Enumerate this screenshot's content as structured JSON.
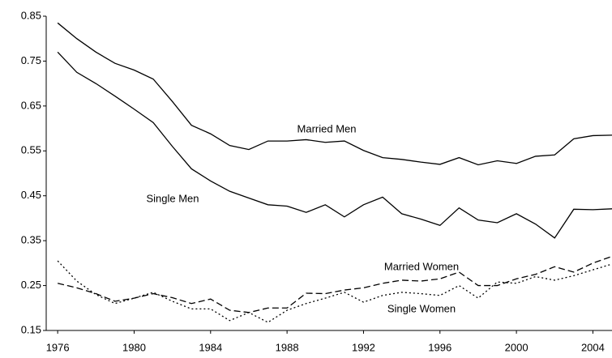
{
  "chart_data": {
    "type": "line",
    "x": [
      1976,
      1977,
      1978,
      1979,
      1980,
      1981,
      1982,
      1983,
      1984,
      1985,
      1986,
      1987,
      1988,
      1989,
      1990,
      1991,
      1992,
      1993,
      1994,
      1995,
      1996,
      1997,
      1998,
      1999,
      2000,
      2001,
      2002,
      2003,
      2004,
      2005
    ],
    "series": [
      {
        "name": "Married Men",
        "color": "#000000",
        "dash": "solid",
        "values": [
          0.835,
          0.8,
          0.77,
          0.745,
          0.73,
          0.71,
          0.66,
          0.607,
          0.588,
          0.562,
          0.553,
          0.572,
          0.572,
          0.575,
          0.569,
          0.572,
          0.551,
          0.535,
          0.531,
          0.525,
          0.52,
          0.535,
          0.519,
          0.528,
          0.522,
          0.538,
          0.541,
          0.577,
          0.584,
          0.585
        ]
      },
      {
        "name": "Single Men",
        "color": "#000000",
        "dash": "solid",
        "values": [
          0.77,
          0.725,
          0.7,
          0.672,
          0.643,
          0.613,
          0.56,
          0.51,
          0.483,
          0.46,
          0.445,
          0.43,
          0.427,
          0.413,
          0.43,
          0.403,
          0.43,
          0.447,
          0.41,
          0.398,
          0.384,
          0.423,
          0.396,
          0.39,
          0.41,
          0.387,
          0.356,
          0.42,
          0.419,
          0.421
        ]
      },
      {
        "name": "Married Women",
        "color": "#000000",
        "dash": "dashed",
        "values": [
          0.255,
          0.245,
          0.232,
          0.215,
          0.222,
          0.232,
          0.223,
          0.21,
          0.22,
          0.195,
          0.19,
          0.2,
          0.2,
          0.233,
          0.232,
          0.24,
          0.245,
          0.255,
          0.262,
          0.26,
          0.265,
          0.28,
          0.25,
          0.25,
          0.265,
          0.275,
          0.292,
          0.28,
          0.3,
          0.315
        ]
      },
      {
        "name": "Single Women",
        "color": "#000000",
        "dash": "dotted",
        "values": [
          0.305,
          0.26,
          0.23,
          0.21,
          0.222,
          0.235,
          0.215,
          0.198,
          0.198,
          0.172,
          0.19,
          0.168,
          0.195,
          0.21,
          0.222,
          0.235,
          0.213,
          0.228,
          0.235,
          0.232,
          0.228,
          0.25,
          0.222,
          0.258,
          0.255,
          0.27,
          0.262,
          0.272,
          0.285,
          0.298
        ]
      }
    ],
    "xlim": [
      1975.4,
      2005
    ],
    "xticks": [
      1976,
      1980,
      1984,
      1988,
      1992,
      1996,
      2000,
      2004
    ],
    "ylim": [
      0.15,
      0.85
    ],
    "yticks": [
      0.15,
      0.25,
      0.35,
      0.45,
      0.55,
      0.65,
      0.75,
      0.85
    ],
    "grid": false
  }
}
